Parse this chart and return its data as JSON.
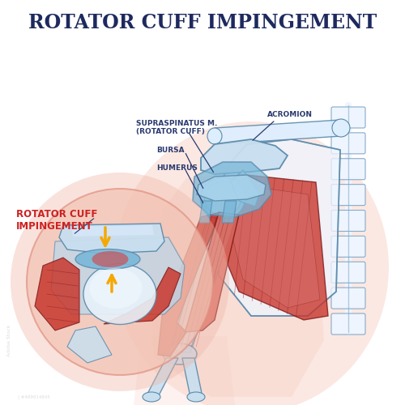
{
  "title": "ROTATOR CUFF IMPINGEMENT",
  "title_color": "#1e2a5e",
  "title_fontsize": 17,
  "bg_color": "#ffffff",
  "labels": {
    "supraspinatus": "SUPRASPINATUS M.\n(ROTATOR CUFF)",
    "bursa": "BURSA",
    "humerus": "HUMERUS",
    "acromion": "ACROMION",
    "impingement": "ROTATOR CUFF\nIMPINGEMENT"
  },
  "label_color": "#2a3a6e",
  "impingement_label_color": "#cc2222",
  "muscle_red": "#c8372d",
  "muscle_light_red": "#d96055",
  "muscle_dark_red": "#7a1a1a",
  "muscle_stripe": "#a02020",
  "bone_color": "#c8dff0",
  "bone_outline": "#5a8aaa",
  "bone_light": "#ddeeff",
  "bone_very_light": "#eef5ff",
  "skin_bg": "#f8cdc0",
  "circle_bg": "#f5c0b0",
  "circle_outline": "#e09080",
  "arrow_color": "#f5a800",
  "joint_blue": "#7ab8d8",
  "joint_blue_light": "#aad4ee",
  "tendon_color": "#d44040",
  "spine_color": "#d8ecf8",
  "spine_outline": "#88aac8"
}
